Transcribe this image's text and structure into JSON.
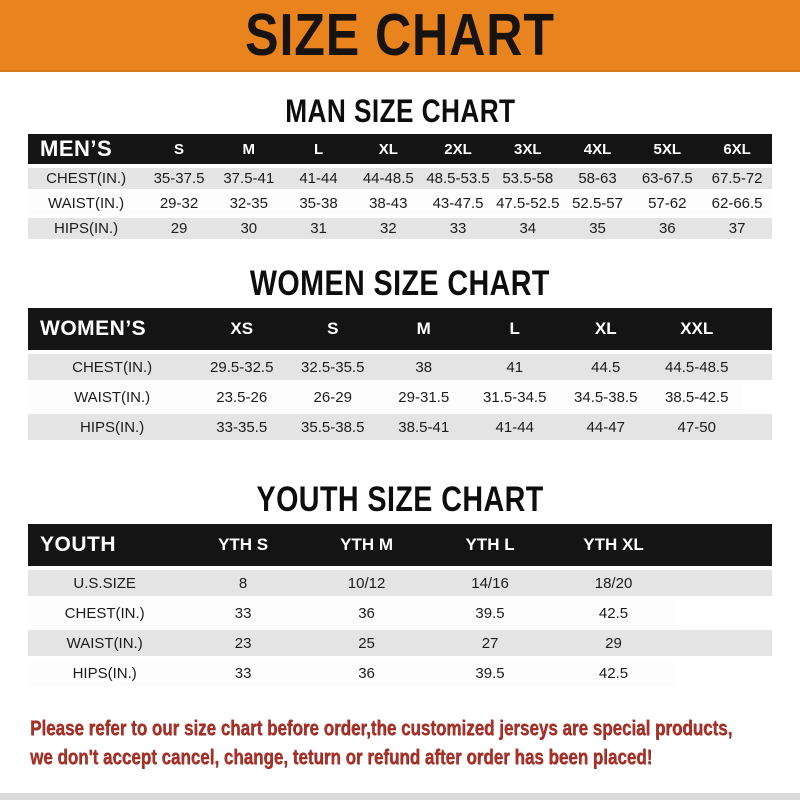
{
  "banner": {
    "title": "SIZE CHART"
  },
  "sections": {
    "man": {
      "heading": "MAN SIZE CHART"
    },
    "women": {
      "heading": "WOMEN SIZE CHART"
    },
    "youth": {
      "heading": "YOUTH SIZE CHART"
    }
  },
  "tables": {
    "men": {
      "header_label": "MEN’S",
      "columns": [
        "S",
        "M",
        "L",
        "XL",
        "2XL",
        "3XL",
        "4XL",
        "5XL",
        "6XL"
      ],
      "rows": [
        {
          "label": "CHEST(IN.)",
          "values": [
            "35-37.5",
            "37.5-41",
            "41-44",
            "44-48.5",
            "48.5-53.5",
            "53.5-58",
            "58-63",
            "63-67.5",
            "67.5-72"
          ]
        },
        {
          "label": "WAIST(IN.)",
          "values": [
            "29-32",
            "32-35",
            "35-38",
            "38-43",
            "43-47.5",
            "47.5-52.5",
            "52.5-57",
            "57-62",
            "62-66.5"
          ]
        },
        {
          "label": "HIPS(IN.)",
          "values": [
            "29",
            "30",
            "31",
            "32",
            "33",
            "34",
            "35",
            "36",
            "37"
          ]
        }
      ]
    },
    "women": {
      "header_label": "WOMEN’S",
      "columns": [
        "XS",
        "S",
        "M",
        "L",
        "XL",
        "XXL"
      ],
      "rows": [
        {
          "label": "CHEST(IN.)",
          "values": [
            "29.5-32.5",
            "32.5-35.5",
            "38",
            "41",
            "44.5",
            "44.5-48.5"
          ]
        },
        {
          "label": "WAIST(IN.)",
          "values": [
            "23.5-26",
            "26-29",
            "29-31.5",
            "31.5-34.5",
            "34.5-38.5",
            "38.5-42.5"
          ]
        },
        {
          "label": "HIPS(IN.)",
          "values": [
            "33-35.5",
            "35.5-38.5",
            "38.5-41",
            "41-44",
            "44-47",
            "47-50"
          ]
        }
      ]
    },
    "youth": {
      "header_label": "YOUTH",
      "columns": [
        "YTH S",
        "YTH M",
        "YTH L",
        "YTH XL"
      ],
      "rows": [
        {
          "label": "U.S.SIZE",
          "values": [
            "8",
            "10/12",
            "14/16",
            "18/20"
          ]
        },
        {
          "label": "CHEST(IN.)",
          "values": [
            "33",
            "36",
            "39.5",
            "42.5"
          ]
        },
        {
          "label": "WAIST(IN.)",
          "values": [
            "23",
            "25",
            "27",
            "29"
          ]
        },
        {
          "label": "HIPS(IN.)",
          "values": [
            "33",
            "36",
            "39.5",
            "42.5"
          ]
        }
      ]
    }
  },
  "footer": {
    "line1": "Please refer to our size chart before order,the customized jerseys are special products,",
    "line2": "we don't accept cancel, change, teturn or refund after order has been placed!"
  },
  "colors": {
    "banner_orange": "#e8831d",
    "header_bar_black": "#141414",
    "row_gray": "#e4e4e4",
    "disclaimer_red": "#a93128"
  }
}
